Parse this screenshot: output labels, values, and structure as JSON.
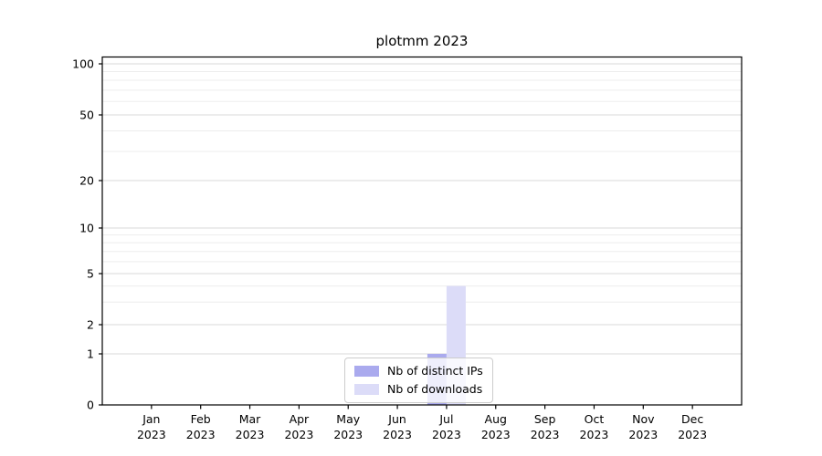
{
  "figure": {
    "background_color": "#ffffff"
  },
  "chart_data": {
    "type": "bar",
    "title": "plotmm 2023",
    "x_axis": {
      "months": [
        "Jan",
        "Feb",
        "Mar",
        "Apr",
        "May",
        "Jun",
        "Jul",
        "Aug",
        "Sep",
        "Oct",
        "Nov",
        "Dec"
      ],
      "year": "2023"
    },
    "y_axis": {
      "scale": "symlog",
      "range": [
        0,
        100
      ],
      "major_ticks": [
        0,
        1,
        2,
        5,
        10,
        20,
        50,
        100
      ],
      "minor_ticks": [
        3,
        4,
        6,
        7,
        8,
        9,
        30,
        40,
        60,
        70,
        80,
        90
      ]
    },
    "series": [
      {
        "name": "Nb of distinct IPs",
        "color": "#aaaaee",
        "values": [
          0,
          0,
          0,
          0,
          0,
          0,
          1,
          0,
          0,
          0,
          0,
          0
        ]
      },
      {
        "name": "Nb of downloads",
        "color": "#dcdcf8",
        "values": [
          0,
          0,
          0,
          0,
          0,
          0,
          4,
          0,
          0,
          0,
          0,
          0
        ]
      }
    ],
    "legend": {
      "position": "bottom-center",
      "entries": [
        "Nb of distinct IPs",
        "Nb of downloads"
      ]
    },
    "colors": {
      "major_grid": "#d9d9d9",
      "minor_grid": "#ededed",
      "axis": "#000000",
      "text": "#000000"
    }
  }
}
